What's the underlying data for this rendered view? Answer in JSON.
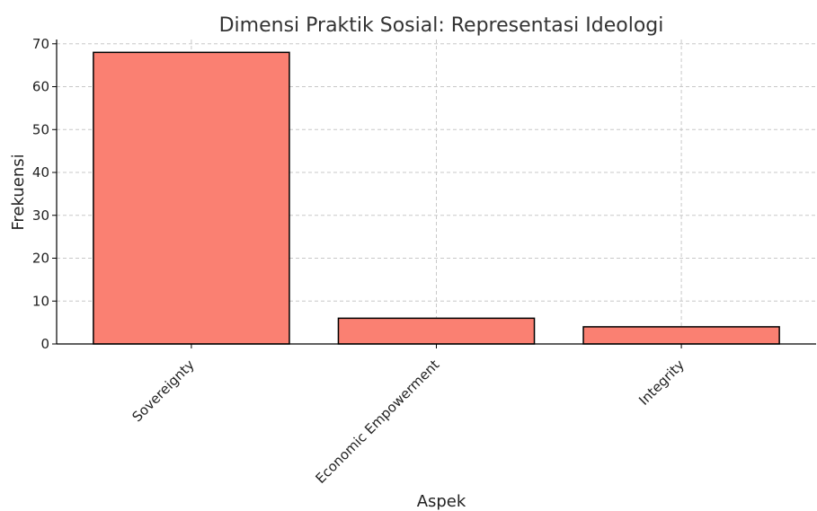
{
  "chart_data": {
    "type": "bar",
    "title": "Dimensi Praktik Sosial: Representasi Ideologi",
    "xlabel": "Aspek",
    "ylabel": "Frekuensi",
    "categories": [
      "Sovereignty",
      "Economic Empowerment",
      "Integrity"
    ],
    "values": [
      68,
      6,
      4
    ],
    "ylim": [
      0,
      71
    ],
    "yticks": [
      0,
      10,
      20,
      30,
      40,
      50,
      60,
      70
    ],
    "grid": true,
    "bar_color": "#fa8072",
    "edge_color": "#000000"
  }
}
